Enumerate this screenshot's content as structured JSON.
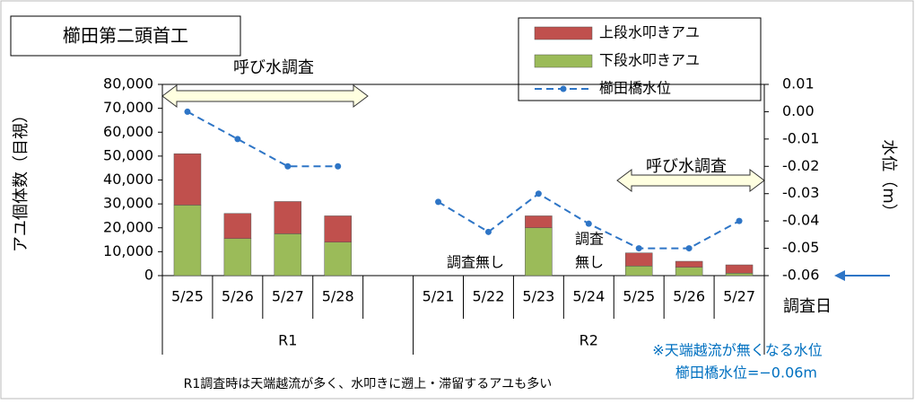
{
  "chart_data": {
    "type": "bar_line",
    "title": "櫛田第二頭首工",
    "y_label": "アユ個体数（目視）",
    "y2_label": "水位（m）",
    "x_label": "調査日",
    "groups": [
      {
        "name": "R1",
        "categories": [
          "5/25",
          "5/26",
          "5/27",
          "5/28",
          null
        ]
      },
      {
        "name": "R2",
        "categories": [
          "5/21",
          "5/22",
          "5/23",
          "5/24",
          "5/25",
          "5/26",
          "5/27"
        ]
      }
    ],
    "series": [
      {
        "name": "下段水叩きアユ",
        "color": "#9bbb59",
        "values": [
          29500,
          15500,
          17500,
          14000,
          null,
          null,
          null,
          20000,
          null,
          4000,
          3500,
          1000
        ]
      },
      {
        "name": "上段水叩きアユ",
        "color": "#c0504d",
        "values": [
          21500,
          10500,
          13500,
          11000,
          null,
          null,
          null,
          5000,
          null,
          5500,
          2500,
          3500
        ]
      },
      {
        "name": "櫛田橋水位",
        "color": "#2e75c6",
        "axis": "y2",
        "values": [
          0.0,
          -0.01,
          -0.02,
          -0.02,
          null,
          -0.033,
          -0.044,
          -0.03,
          -0.041,
          -0.05,
          -0.05,
          -0.04
        ]
      }
    ],
    "ylim": [
      0,
      80000
    ],
    "yticks": [
      0,
      {
        "value": 10000,
        "label": "10,000"
      },
      {
        "value": 20000,
        "label": "20,000"
      },
      {
        "value": 30000,
        "label": "30,000"
      },
      {
        "value": 40000,
        "label": "40,000"
      },
      {
        "value": 50000,
        "label": "50,000"
      },
      {
        "value": 60000,
        "label": "60,000"
      },
      {
        "value": 70000,
        "label": "70,000"
      },
      {
        "value": 80000,
        "label": "80,000"
      }
    ],
    "y2lim": [
      -0.06,
      0.01
    ],
    "y2ticks": [
      -0.06,
      -0.05,
      -0.04,
      -0.03,
      -0.02,
      -0.01,
      {
        "value": 0,
        "label": "0.00"
      },
      0.01
    ],
    "annotations": [
      "呼び水調査",
      "呼び水調査",
      "調査無し",
      "調査",
      "無し",
      "※天端越流が無くなる水位",
      "櫛田橋水位=−0.06m",
      "R1調査時は天端越流が多く、水叩きに遡上・滞留するアユも多い"
    ]
  }
}
